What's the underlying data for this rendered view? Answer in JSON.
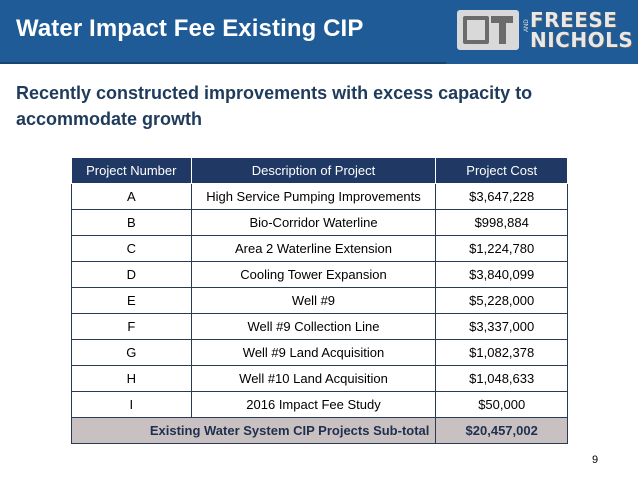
{
  "slide": {
    "title": "Water Impact Fee Existing CIP",
    "subtitle": "Recently constructed improvements with excess capacity to accommodate growth",
    "page_number": "9"
  },
  "logo": {
    "line1": "FREESE",
    "and": "AND",
    "line2": "NICHOLS",
    "icon": "freese-nichols-logo-mark"
  },
  "table": {
    "headers": [
      "Project Number",
      "Description of Project",
      "Project Cost"
    ],
    "rows": [
      {
        "number": "A",
        "description": "High Service Pumping Improvements",
        "cost": "$3,647,228"
      },
      {
        "number": "B",
        "description": "Bio-Corridor Waterline",
        "cost": "$998,884"
      },
      {
        "number": "C",
        "description": "Area 2 Waterline Extension",
        "cost": "$1,224,780"
      },
      {
        "number": "D",
        "description": "Cooling Tower Expansion",
        "cost": "$3,840,099"
      },
      {
        "number": "E",
        "description": "Well #9",
        "cost": "$5,228,000"
      },
      {
        "number": "F",
        "description": "Well #9 Collection Line",
        "cost": "$3,337,000"
      },
      {
        "number": "G",
        "description": "Well #9 Land Acquisition",
        "cost": "$1,082,378"
      },
      {
        "number": "H",
        "description": "Well #10 Land Acquisition",
        "cost": "$1,048,633"
      },
      {
        "number": "I",
        "description": "2016 Impact Fee Study",
        "cost": "$50,000"
      }
    ],
    "subtotal": {
      "label": "Existing Water System CIP Projects Sub-total",
      "cost": "$20,457,002"
    }
  },
  "colors": {
    "title_bar": "#1f5b96",
    "header_row": "#1f3864",
    "subtitle_text": "#1f3b5c",
    "subtotal_row": "#c9c1c1"
  }
}
